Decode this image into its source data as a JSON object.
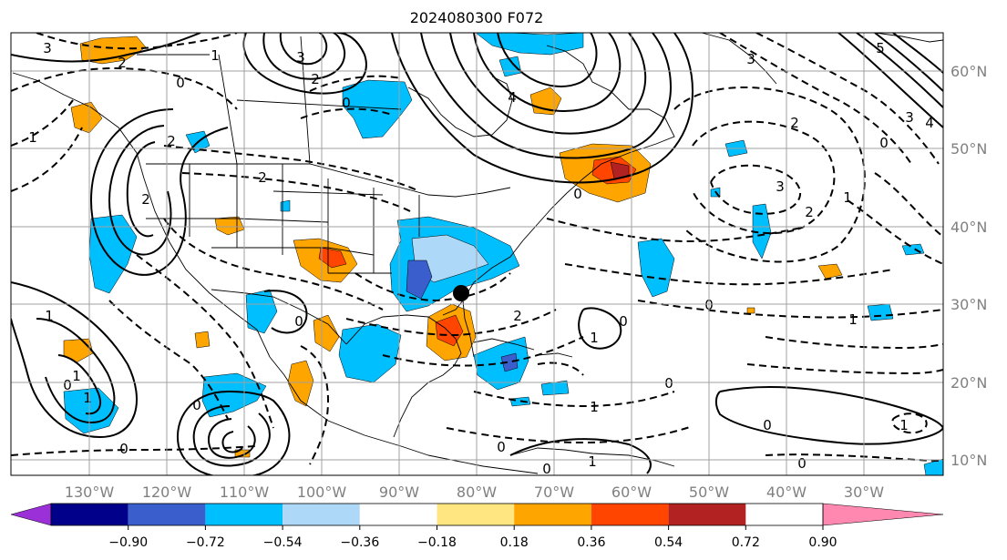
{
  "title": "2024080300 F072",
  "longitude_labels": [
    "130°W",
    "120°W",
    "110°W",
    "100°W",
    "90°W",
    "80°W",
    "70°W",
    "60°W",
    "50°W",
    "40°W",
    "30°W"
  ],
  "latitude_labels": [
    "10°N",
    "20°N",
    "30°N",
    "40°N",
    "50°N",
    "60°N"
  ],
  "colorbar": {
    "tick_labels": [
      "−0.90",
      "−0.72",
      "−0.54",
      "−0.36",
      "−0.18",
      "0.18",
      "0.36",
      "0.54",
      "0.72",
      "0.90"
    ],
    "colors": [
      "#9b30d9",
      "#00008b",
      "#3a5fcd",
      "#00bfff",
      "#add8f7",
      "#ffffff",
      "#ffe680",
      "#ffa500",
      "#ff4500",
      "#b22222",
      "#ff88b0"
    ]
  },
  "contour_labels": [
    "3",
    "2",
    "0",
    "2",
    "3",
    "2",
    "1",
    "4",
    "3",
    "2",
    "5",
    "4",
    "3",
    "0",
    "2",
    "3",
    "1",
    "2",
    "0",
    "2",
    "0",
    "0",
    "2",
    "0",
    "1",
    "1",
    "0",
    "0",
    "0",
    "0",
    "1",
    "1",
    "0",
    "1",
    "1",
    "0",
    "0",
    "0",
    "1",
    "1",
    "0",
    "1"
  ],
  "marker": {
    "label": ""
  }
}
